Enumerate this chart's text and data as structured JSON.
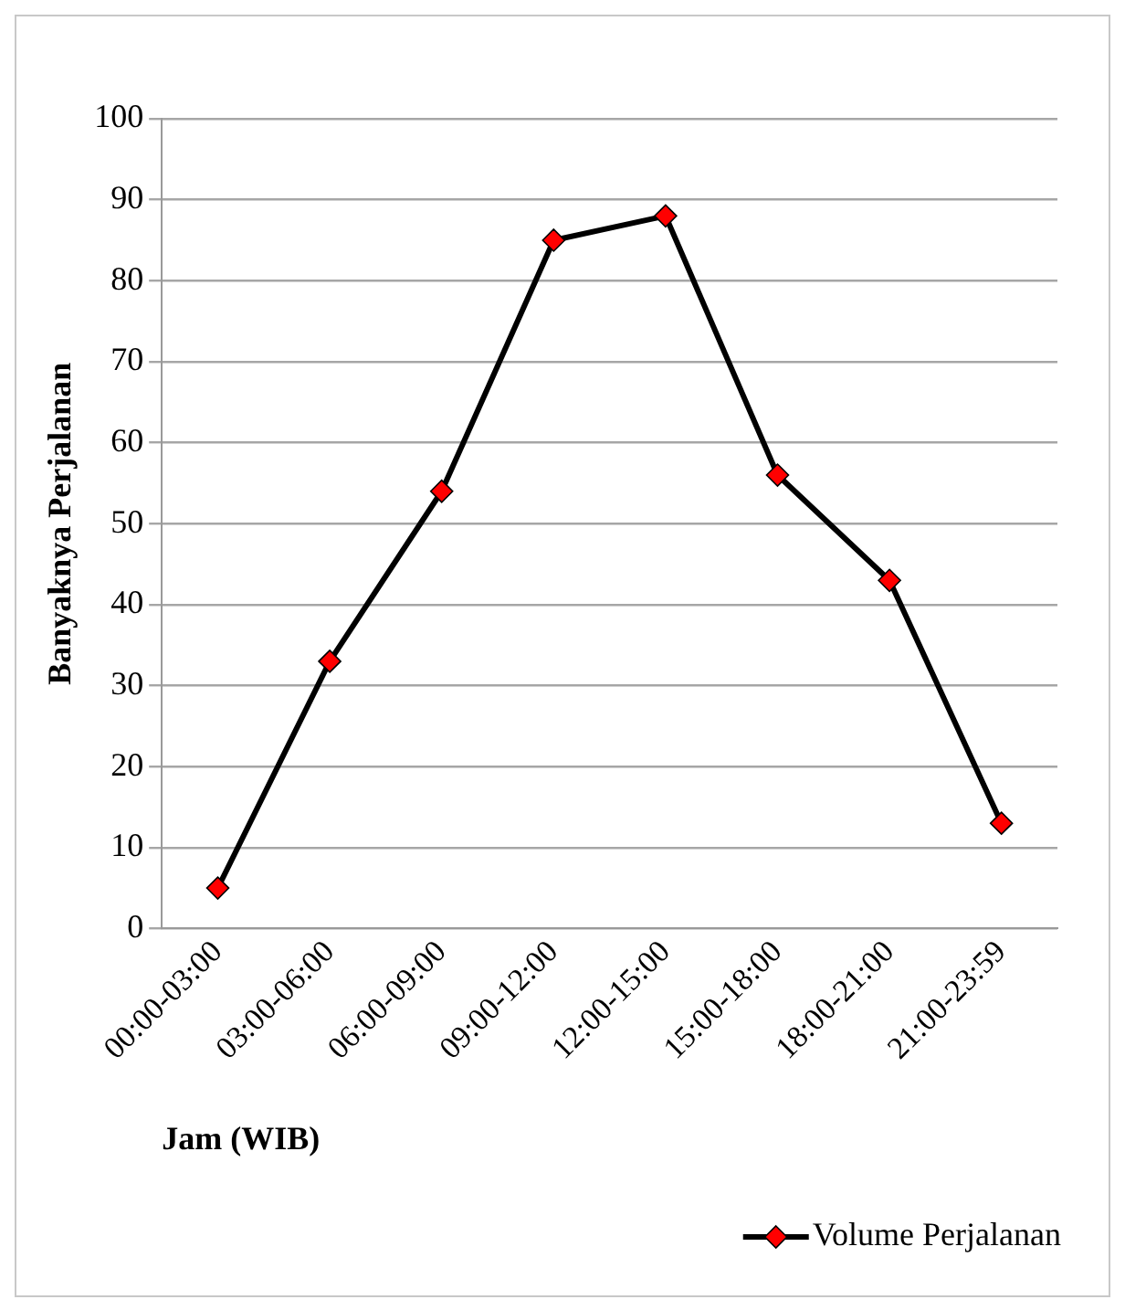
{
  "chart_data": {
    "type": "line",
    "xlabel": "Jam (WIB)",
    "ylabel": "Banyaknya Perjalanan",
    "categories": [
      "00:00-03:00",
      "03:00-06:00",
      "06:00-09:00",
      "09:00-12:00",
      "12:00-15:00",
      "15:00-18:00",
      "18:00-21:00",
      "21:00-23:59"
    ],
    "series": [
      {
        "name": "Volume Perjalanan",
        "color": "#000000",
        "colors": [
          "#ff0000",
          "#ff0000",
          "#ff0000",
          "#ff0000",
          "#ff0000",
          "#ff0000",
          "#ff0000",
          "#ff0000"
        ],
        "values": [
          5,
          33,
          54,
          85,
          88,
          56,
          43,
          13
        ]
      }
    ],
    "ylim": [
      0,
      100
    ],
    "yticks": [
      0,
      10,
      20,
      30,
      40,
      50,
      60,
      70,
      80,
      90,
      100
    ],
    "grid": "y",
    "legend": "bottom right",
    "marker": "diamond",
    "line_style": "solid"
  }
}
